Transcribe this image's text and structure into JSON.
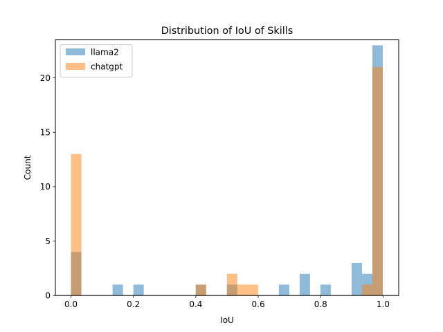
{
  "chart_data": {
    "type": "bar",
    "title": "Distribution of IoU of Skills",
    "xlabel": "IoU",
    "ylabel": "Count",
    "xlim": [
      -0.05,
      1.05
    ],
    "ylim": [
      0,
      23.5
    ],
    "xticks": [
      0.0,
      0.2,
      0.4,
      0.6,
      0.8,
      1.0
    ],
    "xtick_labels": [
      "0.0",
      "0.2",
      "0.4",
      "0.6",
      "0.8",
      "1.0"
    ],
    "yticks": [
      0,
      5,
      10,
      15,
      20
    ],
    "ytick_labels": [
      "0",
      "5",
      "10",
      "15",
      "20"
    ],
    "bin_edges_start": 0.0,
    "bin_width": 0.0333,
    "grid": false,
    "legend_position": "top-left",
    "series": [
      {
        "name": "llama2",
        "color": "#1f77b4",
        "opacity": 0.5,
        "counts": [
          4,
          0,
          0,
          0,
          1,
          0,
          1,
          0,
          0,
          0,
          0,
          0,
          1,
          0,
          0,
          1,
          0,
          0,
          0,
          0,
          1,
          0,
          2,
          0,
          1,
          0,
          0,
          3,
          2,
          23
        ]
      },
      {
        "name": "chatgpt",
        "color": "#ff7f0e",
        "opacity": 0.5,
        "counts": [
          13,
          0,
          0,
          0,
          0,
          0,
          0,
          0,
          0,
          0,
          0,
          0,
          1,
          0,
          0,
          2,
          1,
          1,
          0,
          0,
          0,
          0,
          0,
          0,
          0,
          0,
          0,
          0,
          1,
          21
        ]
      }
    ]
  }
}
